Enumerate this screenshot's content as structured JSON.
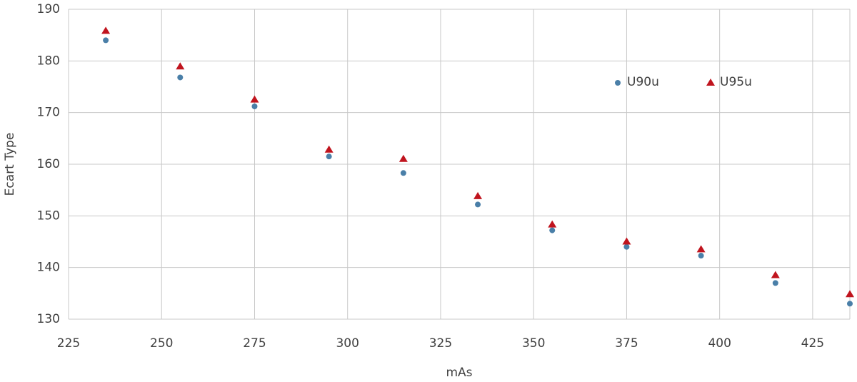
{
  "chart_data": {
    "type": "scatter",
    "xlabel": "mAs",
    "ylabel": "Ecart Type",
    "x": [
      235,
      255,
      275,
      295,
      315,
      335,
      355,
      375,
      395,
      415,
      435
    ],
    "series": [
      {
        "name": "U90u",
        "color": "#4a7fa8",
        "marker": "circle",
        "values": [
          184,
          176.8,
          171.2,
          161.5,
          158.3,
          152.2,
          147.2,
          144,
          142.3,
          137,
          133
        ]
      },
      {
        "name": "U95u",
        "color": "#c0141e",
        "marker": "triangle",
        "values": [
          185.8,
          178.9,
          172.5,
          162.8,
          161,
          153.8,
          148.3,
          145,
          143.5,
          138.5,
          134.8
        ]
      }
    ],
    "xlim": [
      225,
      435
    ],
    "ylim": [
      130,
      190
    ],
    "xticks": [
      225,
      250,
      275,
      300,
      325,
      350,
      375,
      400,
      425
    ],
    "yticks": [
      130,
      140,
      150,
      160,
      170,
      180,
      190
    ],
    "grid": true,
    "legend": "upper right"
  }
}
